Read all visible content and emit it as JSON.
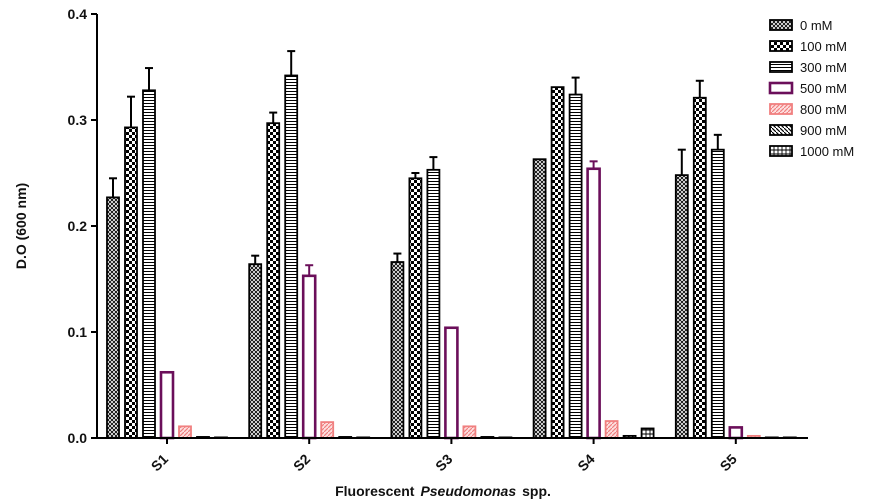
{
  "chart_data": {
    "type": "bar",
    "ylabel": "D.O (600 nm)",
    "xlabel_prefix": "Fluorescent",
    "xlabel_italic": "Pseudomonas",
    "xlabel_suffix": "spp.",
    "ylim": [
      0,
      0.4
    ],
    "yticks": [
      "0.0",
      "0.1",
      "0.2",
      "0.3",
      "0.4"
    ],
    "ytick_values": [
      0,
      0.1,
      0.2,
      0.3,
      0.4
    ],
    "categories": [
      "S1",
      "S2",
      "S3",
      "S4",
      "S5"
    ],
    "legend_position": "top-right",
    "series": [
      {
        "name": "0 mM",
        "values": [
          0.227,
          0.164,
          0.166,
          0.263,
          0.248
        ],
        "errors": [
          0.018,
          0.008,
          0.008,
          0.0,
          0.024
        ],
        "stroke": "#000000",
        "pattern": "pat-crosshatch"
      },
      {
        "name": "100 mM",
        "values": [
          0.293,
          0.297,
          0.245,
          0.331,
          0.321
        ],
        "errors": [
          0.029,
          0.01,
          0.005,
          0.0,
          0.016
        ],
        "stroke": "#000000",
        "pattern": "pat-checker"
      },
      {
        "name": "300 mM",
        "values": [
          0.328,
          0.342,
          0.253,
          0.324,
          0.272
        ],
        "errors": [
          0.021,
          0.023,
          0.012,
          0.016,
          0.014
        ],
        "stroke": "#000000",
        "pattern": "pat-hlines"
      },
      {
        "name": "500 mM",
        "values": [
          0.062,
          0.153,
          0.104,
          0.254,
          0.01
        ],
        "errors": [
          0.0,
          0.01,
          0.0,
          0.007,
          0.0
        ],
        "stroke": "#6b0f5a",
        "pattern": "pat-none"
      },
      {
        "name": "800 mM",
        "values": [
          0.011,
          0.015,
          0.011,
          0.016,
          0.002
        ],
        "errors": [
          0.0,
          0.0,
          0.0,
          0.0,
          0.0
        ],
        "stroke": "#f08080",
        "pattern": "pat-diag-pink"
      },
      {
        "name": "900 mM",
        "values": [
          0.001,
          0.001,
          0.001,
          0.002,
          0.0
        ],
        "errors": [
          0.0,
          0.0,
          0.0,
          0.0,
          0.0
        ],
        "stroke": "#000000",
        "pattern": "pat-diag-black"
      },
      {
        "name": "1000 mM",
        "values": [
          0.0,
          0.0,
          0.0,
          0.009,
          0.0
        ],
        "errors": [
          0.0,
          0.0,
          0.0,
          0.0,
          0.0
        ],
        "stroke": "#000000",
        "pattern": "pat-grid"
      }
    ]
  }
}
